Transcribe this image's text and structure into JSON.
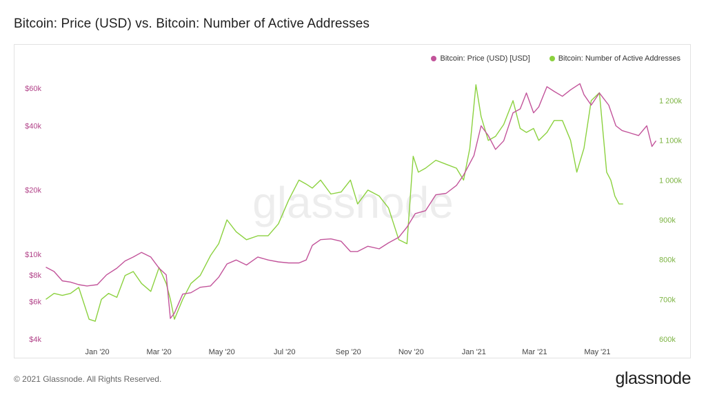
{
  "title": "Bitcoin: Price (USD) vs. Bitcoin: Number of Active Addresses",
  "footer": {
    "copyright": "© 2021 Glassnode. All Rights Reserved.",
    "logo": "glassnode"
  },
  "watermark": "glassnode",
  "colors": {
    "price": "#c2539a",
    "addresses": "#8bd13e",
    "left_axis_text": "#b24389",
    "right_axis_text": "#7cb342"
  },
  "chart_data": {
    "type": "line",
    "legend_position": "top-right",
    "grid": false,
    "x_ticks": [
      "Jan '20",
      "Mar '20",
      "May '20",
      "Jul '20",
      "Sep '20",
      "Nov '20",
      "Jan '21",
      "Mar '21",
      "May '21"
    ],
    "left_axis": {
      "scale": "log",
      "ticks": [
        "$4k",
        "$6k",
        "$8k",
        "$10k",
        "$20k",
        "$40k",
        "$60k"
      ],
      "tick_values": [
        4000,
        6000,
        8000,
        10000,
        20000,
        40000,
        60000
      ]
    },
    "right_axis": {
      "scale": "linear",
      "ticks": [
        "600k",
        "700k",
        "800k",
        "900k",
        "1 000k",
        "1 100k",
        "1 200k"
      ],
      "tick_values": [
        600000,
        700000,
        800000,
        900000,
        1000000,
        1100000,
        1200000
      ]
    },
    "series": [
      {
        "name": "Bitcoin: Price (USD) [USD]",
        "axis": "left",
        "x": [
          "2019-11-12",
          "2019-11-20",
          "2019-11-28",
          "2019-12-06",
          "2019-12-14",
          "2019-12-22",
          "2020-01-01",
          "2020-01-10",
          "2020-01-20",
          "2020-01-28",
          "2020-02-05",
          "2020-02-13",
          "2020-02-22",
          "2020-03-01",
          "2020-03-08",
          "2020-03-12",
          "2020-03-16",
          "2020-03-24",
          "2020-04-01",
          "2020-04-10",
          "2020-04-20",
          "2020-04-28",
          "2020-05-06",
          "2020-05-15",
          "2020-05-25",
          "2020-06-05",
          "2020-06-15",
          "2020-06-25",
          "2020-07-05",
          "2020-07-15",
          "2020-07-22",
          "2020-07-28",
          "2020-08-05",
          "2020-08-15",
          "2020-08-25",
          "2020-09-03",
          "2020-09-10",
          "2020-09-20",
          "2020-10-01",
          "2020-10-10",
          "2020-10-20",
          "2020-10-28",
          "2020-11-05",
          "2020-11-15",
          "2020-11-25",
          "2020-12-05",
          "2020-12-15",
          "2020-12-22",
          "2021-01-01",
          "2021-01-08",
          "2021-01-15",
          "2021-01-22",
          "2021-01-30",
          "2021-02-08",
          "2021-02-15",
          "2021-02-21",
          "2021-02-28",
          "2021-03-05",
          "2021-03-13",
          "2021-03-20",
          "2021-03-28",
          "2021-04-05",
          "2021-04-14",
          "2021-04-18",
          "2021-04-25",
          "2021-05-03",
          "2021-05-12",
          "2021-05-19",
          "2021-05-25",
          "2021-06-02",
          "2021-06-10",
          "2021-06-18",
          "2021-06-23",
          "2021-06-27"
        ],
        "values": [
          8700,
          8300,
          7500,
          7400,
          7200,
          7100,
          7200,
          8000,
          8600,
          9300,
          9700,
          10200,
          9700,
          8600,
          8000,
          5000,
          5300,
          6500,
          6600,
          7000,
          7100,
          7800,
          9000,
          9400,
          8900,
          9700,
          9400,
          9200,
          9100,
          9100,
          9400,
          11000,
          11700,
          11800,
          11500,
          10300,
          10300,
          10900,
          10600,
          11300,
          12000,
          13400,
          15500,
          16000,
          19000,
          19300,
          21000,
          23500,
          29000,
          40000,
          36000,
          31000,
          34000,
          46000,
          48000,
          57000,
          46000,
          49000,
          61000,
          58000,
          55000,
          59000,
          63000,
          56000,
          50000,
          57000,
          50000,
          40000,
          38000,
          37000,
          36000,
          40000,
          32000,
          34000
        ]
      },
      {
        "name": "Bitcoin: Number of Active Addresses",
        "axis": "right",
        "x": [
          "2019-11-12",
          "2019-11-20",
          "2019-11-28",
          "2019-12-06",
          "2019-12-14",
          "2019-12-24",
          "2019-12-30",
          "2020-01-05",
          "2020-01-12",
          "2020-01-20",
          "2020-01-28",
          "2020-02-05",
          "2020-02-13",
          "2020-02-22",
          "2020-03-01",
          "2020-03-08",
          "2020-03-12",
          "2020-03-16",
          "2020-03-24",
          "2020-04-01",
          "2020-04-10",
          "2020-04-20",
          "2020-04-28",
          "2020-05-06",
          "2020-05-15",
          "2020-05-25",
          "2020-06-05",
          "2020-06-15",
          "2020-06-25",
          "2020-07-05",
          "2020-07-15",
          "2020-07-22",
          "2020-07-28",
          "2020-08-05",
          "2020-08-15",
          "2020-08-25",
          "2020-09-03",
          "2020-09-10",
          "2020-09-20",
          "2020-10-01",
          "2020-10-10",
          "2020-10-20",
          "2020-10-28",
          "2020-11-03",
          "2020-11-08",
          "2020-11-15",
          "2020-11-25",
          "2020-12-05",
          "2020-12-15",
          "2020-12-22",
          "2020-12-28",
          "2021-01-03",
          "2021-01-08",
          "2021-01-15",
          "2021-01-22",
          "2021-01-30",
          "2021-02-08",
          "2021-02-15",
          "2021-02-21",
          "2021-02-28",
          "2021-03-05",
          "2021-03-13",
          "2021-03-20",
          "2021-03-28",
          "2021-04-05",
          "2021-04-11",
          "2021-04-18",
          "2021-04-25",
          "2021-05-03",
          "2021-05-10",
          "2021-05-14",
          "2021-05-18",
          "2021-05-22",
          "2021-05-26"
        ],
        "values": [
          700000,
          715000,
          710000,
          715000,
          730000,
          650000,
          645000,
          700000,
          715000,
          705000,
          760000,
          770000,
          740000,
          720000,
          780000,
          740000,
          700000,
          650000,
          700000,
          740000,
          760000,
          810000,
          840000,
          900000,
          870000,
          850000,
          860000,
          860000,
          890000,
          950000,
          1000000,
          990000,
          980000,
          1000000,
          965000,
          970000,
          1000000,
          940000,
          975000,
          960000,
          930000,
          850000,
          840000,
          1060000,
          1020000,
          1030000,
          1050000,
          1040000,
          1030000,
          1000000,
          1080000,
          1240000,
          1160000,
          1100000,
          1110000,
          1140000,
          1200000,
          1130000,
          1120000,
          1130000,
          1100000,
          1120000,
          1150000,
          1150000,
          1100000,
          1020000,
          1080000,
          1200000,
          1220000,
          1020000,
          1000000,
          960000,
          940000,
          940000
        ]
      }
    ]
  }
}
